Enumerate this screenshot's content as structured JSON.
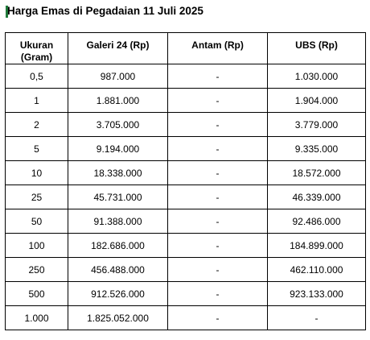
{
  "title": "Harga Emas di Pegadaian 11 Juli 2025",
  "table": {
    "headers": {
      "size_line1": "Ukuran",
      "size_line2": "(Gram)",
      "galeri": "Galeri 24 (Rp)",
      "antam": "Antam (Rp)",
      "ubs": "UBS (Rp)"
    },
    "rows": [
      {
        "size": "0,5",
        "galeri": "987.000",
        "antam": "-",
        "ubs": "1.030.000"
      },
      {
        "size": "1",
        "galeri": "1.881.000",
        "antam": "-",
        "ubs": "1.904.000"
      },
      {
        "size": "2",
        "galeri": "3.705.000",
        "antam": "-",
        "ubs": "3.779.000"
      },
      {
        "size": "5",
        "galeri": "9.194.000",
        "antam": "-",
        "ubs": "9.335.000"
      },
      {
        "size": "10",
        "galeri": "18.338.000",
        "antam": "-",
        "ubs": "18.572.000"
      },
      {
        "size": "25",
        "galeri": "45.731.000",
        "antam": "-",
        "ubs": "46.339.000"
      },
      {
        "size": "50",
        "galeri": "91.388.000",
        "antam": "-",
        "ubs": "92.486.000"
      },
      {
        "size": "100",
        "galeri": "182.686.000",
        "antam": "-",
        "ubs": "184.899.000"
      },
      {
        "size": "250",
        "galeri": "456.488.000",
        "antam": "-",
        "ubs": "462.110.000"
      },
      {
        "size": "500",
        "galeri": "912.526.000",
        "antam": "-",
        "ubs": "923.133.000"
      },
      {
        "size": "1.000",
        "galeri": "1.825.052.000",
        "antam": "-",
        "ubs": "-"
      }
    ]
  }
}
